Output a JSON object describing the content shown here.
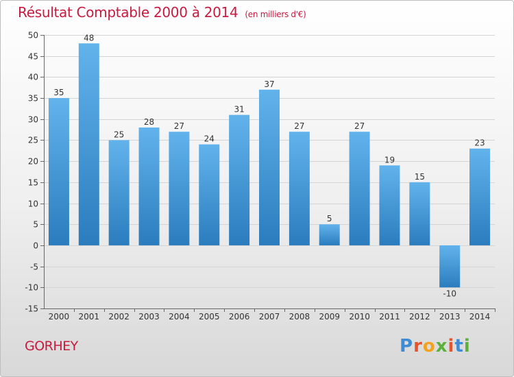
{
  "title": "Résultat Comptable 2000 à 2014",
  "subtitle": "(en milliers d'€)",
  "town": "GORHEY",
  "logo_text": "Proxiti",
  "colors": {
    "title": "#c8193e",
    "bar_top": "#62b3ec",
    "bar_bottom": "#2a7cbd",
    "logo": [
      "#3f8bd4",
      "#e5542a",
      "#f2a21c",
      "#5bb13a",
      "#e5542a",
      "#3f8bd4",
      "#5bb13a"
    ]
  },
  "chart_data": {
    "type": "bar",
    "categories": [
      "2000",
      "2001",
      "2002",
      "2003",
      "2004",
      "2005",
      "2006",
      "2007",
      "2008",
      "2009",
      "2010",
      "2011",
      "2012",
      "2013",
      "2014"
    ],
    "values": [
      35,
      48,
      25,
      28,
      27,
      24,
      31,
      37,
      27,
      5,
      27,
      19,
      15,
      -10,
      23
    ],
    "data_labels": [
      "35",
      "48",
      "25",
      "28",
      "27",
      "24",
      "31",
      "37",
      "27",
      "5",
      "27",
      "19",
      "15",
      "-10",
      "23"
    ],
    "ylim": [
      -15,
      50
    ],
    "yticks": [
      -15,
      -10,
      -5,
      0,
      5,
      10,
      15,
      20,
      25,
      30,
      35,
      40,
      45,
      50
    ],
    "grid": true,
    "legend": "none"
  }
}
